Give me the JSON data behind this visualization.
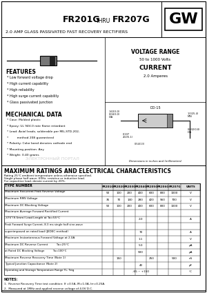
{
  "title_part": "FR201G",
  "title_thru": " THRU ",
  "title_part2": "FR207G",
  "subtitle": "2.0 AMP GLASS PASSIVATED FAST RECOVERY RECTIFIERS",
  "logo": "GW",
  "voltage_range_title": "VOLTAGE RANGE",
  "voltage_range_val": "50 to 1000 Volts",
  "current_title": "CURRENT",
  "current_val": "2.0 Amperes",
  "features_title": "FEATURES",
  "features": [
    "Low forward voltage drop",
    "High current capability",
    "High reliability",
    "High surge current capability",
    "Glass passivated junction"
  ],
  "mech_title": "MECHANICAL DATA",
  "mech": [
    "Case: Molded plastic",
    "Epoxy: UL 94V-0 rate flame retardant",
    "Lead: Axial leads, solderable per MIL-STD-202,",
    "        method 208 guaranteed",
    "Polarity: Color band denotes cathode end",
    "Mounting position: Any",
    "Weight: 0.40 grams"
  ],
  "ratings_title": "MAXIMUM RATINGS AND ELECTRICAL CHARACTERISTICS",
  "ratings_note1": "Rating 25°C ambient temperature unless otherwise specified.",
  "ratings_note2": "Single phase half wave, 60Hz, resistive or inductive load.",
  "ratings_note3": "For capacitive load, derate current by 20%.",
  "table_headers": [
    "TYPE NUMBER",
    "FR201G",
    "FR202G",
    "FR203G",
    "FR204G",
    "FR205G",
    "FR206G",
    "FR207G",
    "UNITS"
  ],
  "table_rows": [
    [
      "Maximum Recurrent Peak Reverse Voltage",
      "50",
      "100",
      "200",
      "400",
      "600",
      "800",
      "1000",
      "V"
    ],
    [
      "Maximum RMS Voltage",
      "35",
      "70",
      "140",
      "280",
      "420",
      "560",
      "700",
      "V"
    ],
    [
      "Maximum DC Blocking Voltage",
      "50",
      "100",
      "200",
      "400",
      "600",
      "800",
      "1000",
      "V"
    ],
    [
      "Maximum Average Forward Rectified Current",
      "",
      "",
      "",
      "",
      "",
      "",
      "",
      ""
    ],
    [
      ".375\"(9.5mm) Lead Length at Ta=55°C",
      "",
      "",
      "",
      "2.0",
      "",
      "",
      "",
      "A"
    ],
    [
      "Peak Forward Surge Current, 8.3 ms single half sine-wave",
      "",
      "",
      "",
      "",
      "",
      "",
      "",
      ""
    ],
    [
      "superimposed on rated load (JEDEC method)",
      "",
      "",
      "",
      "70",
      "",
      "",
      "",
      "A"
    ],
    [
      "Maximum Instantaneous Forward Voltage at 2.0A",
      "",
      "",
      "",
      "1.1",
      "",
      "",
      "",
      "V"
    ],
    [
      "Maximum DC Reverse Current          Ta=25°C",
      "",
      "",
      "",
      "5.0",
      "",
      "",
      "",
      "μA"
    ],
    [
      "at Rated DC Blocking Voltage          Ta=100°C",
      "",
      "",
      "",
      "500",
      "",
      "",
      "",
      "μA"
    ],
    [
      "Maximum Reverse Recovery Time (Note 1)",
      "",
      "150",
      "",
      "",
      "250",
      "",
      "500",
      "nS"
    ],
    [
      "Typical Junction Capacitance (Note 2)",
      "",
      "",
      "",
      "40",
      "",
      "",
      "",
      "pF"
    ],
    [
      "Operating and Storage Temperature Range TL, Tstg",
      "",
      "",
      "",
      "-65 ~ +150",
      "",
      "",
      "",
      "°C"
    ]
  ],
  "notes_title": "NOTES:",
  "note1": "1.  Reverse Recovery Time test condition: If =0.5A, IR=1.0A, Irr=0.25A.",
  "note2": "2.  Measured at 1MHz and applied reverse voltage of 4.0V D.C.",
  "do15": "DO-15",
  "bg_color": "#ffffff",
  "border_color": "#000000",
  "text_color": "#000000"
}
